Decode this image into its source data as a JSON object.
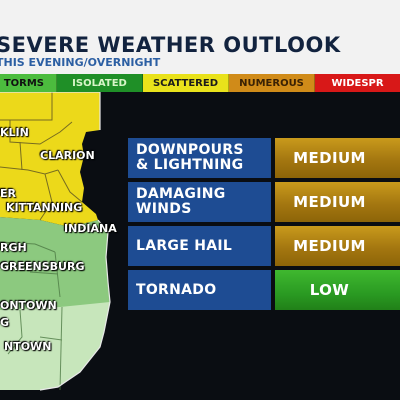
{
  "header": {
    "title": "SEVERE WEATHER OUTLOOK",
    "subtitle": "THIS EVENING/OVERNIGHT"
  },
  "categories": [
    {
      "label": "TORMS",
      "color": "#4cbc3e",
      "text_color": "#111111"
    },
    {
      "label": "ISOLATED",
      "color": "#1f8f27",
      "text_color": "#d8f5c8"
    },
    {
      "label": "SCATTERED",
      "color": "#e9e21b",
      "text_color": "#1b1b1b"
    },
    {
      "label": "NUMEROUS",
      "color": "#d08b19",
      "text_color": "#3a2104"
    },
    {
      "label": "WIDESPR",
      "color": "#d81818",
      "text_color": "#ffffff"
    }
  ],
  "map": {
    "cities": [
      "KLIN",
      "CLARION",
      "ER",
      "KITTANNING",
      "INDIANA",
      "RGH",
      "GREENSBURG",
      "ONTOWN",
      "G",
      "NTOWN"
    ],
    "zone_colors": {
      "yellow": "#ecd91a",
      "green": "#8cc97f",
      "light_green": "#c7e6bb"
    }
  },
  "risks": [
    {
      "label_line1": "DOWNPOURS",
      "label_line2": "& LIGHTNING",
      "level": "MEDIUM",
      "level_class": "medium"
    },
    {
      "label_line1": "DAMAGING",
      "label_line2": "WINDS",
      "level": "MEDIUM",
      "level_class": "medium"
    },
    {
      "label_line1": "LARGE HAIL",
      "label_line2": "",
      "level": "MEDIUM",
      "level_class": "medium"
    },
    {
      "label_line1": "TORNADO",
      "label_line2": "",
      "level": "LOW",
      "level_class": "low"
    }
  ]
}
